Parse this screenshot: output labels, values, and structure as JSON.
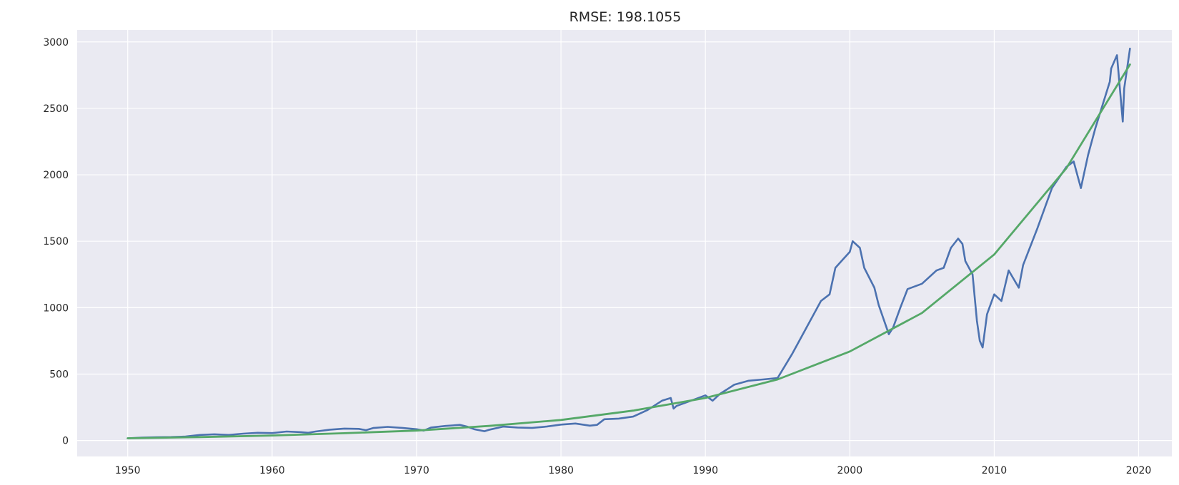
{
  "chart_data": {
    "type": "line",
    "title": "RMSE: 198.1055",
    "xlabel": "",
    "ylabel": "",
    "xlim": [
      1946.5,
      2022.3
    ],
    "ylim": [
      -120,
      3090
    ],
    "x_ticks": [
      "1950",
      "1960",
      "1970",
      "1980",
      "1990",
      "2000",
      "2010",
      "2020"
    ],
    "y_ticks": [
      "0",
      "500",
      "1000",
      "1500",
      "2000",
      "2500",
      "3000"
    ],
    "grid": true,
    "legend": "none",
    "series": [
      {
        "color": "#4c72b0",
        "x": [
          1950.0,
          1951.0,
          1952.0,
          1953.0,
          1954.0,
          1955.0,
          1956.0,
          1957.0,
          1958.0,
          1959.0,
          1960.0,
          1961.0,
          1962.0,
          1962.5,
          1963.0,
          1964.0,
          1965.0,
          1966.0,
          1966.5,
          1967.0,
          1968.0,
          1969.0,
          1970.0,
          1970.5,
          1971.0,
          1972.0,
          1973.0,
          1973.5,
          1974.0,
          1974.7,
          1975.0,
          1976.0,
          1977.0,
          1978.0,
          1979.0,
          1980.0,
          1981.0,
          1982.0,
          1982.5,
          1983.0,
          1984.0,
          1985.0,
          1986.0,
          1987.0,
          1987.6,
          1987.8,
          1988.0,
          1989.0,
          1990.0,
          1990.5,
          1991.0,
          1992.0,
          1993.0,
          1994.0,
          1995.0,
          1996.0,
          1997.0,
          1998.0,
          1998.6,
          1999.0,
          1999.5,
          2000.0,
          2000.2,
          2000.7,
          2001.0,
          2001.7,
          2002.0,
          2002.7,
          2003.0,
          2003.5,
          2004.0,
          2005.0,
          2006.0,
          2006.5,
          2007.0,
          2007.5,
          2007.8,
          2008.0,
          2008.5,
          2008.8,
          2009.0,
          2009.2,
          2009.5,
          2010.0,
          2010.5,
          2011.0,
          2011.7,
          2012.0,
          2013.0,
          2014.0,
          2015.0,
          2015.5,
          2016.0,
          2016.5,
          2017.0,
          2018.0,
          2018.1,
          2018.5,
          2018.9,
          2019.0,
          2019.4
        ],
        "y": [
          17,
          22,
          25,
          26,
          30,
          42,
          47,
          42,
          52,
          58,
          56,
          68,
          63,
          58,
          68,
          82,
          90,
          88,
          78,
          94,
          103,
          95,
          85,
          75,
          98,
          110,
          118,
          105,
          85,
          70,
          80,
          105,
          98,
          95,
          105,
          120,
          128,
          112,
          118,
          160,
          165,
          180,
          230,
          300,
          320,
          240,
          260,
          300,
          340,
          300,
          350,
          420,
          450,
          460,
          470,
          650,
          850,
          1050,
          1100,
          1300,
          1360,
          1420,
          1500,
          1450,
          1300,
          1150,
          1020,
          800,
          850,
          1000,
          1140,
          1180,
          1280,
          1300,
          1450,
          1520,
          1480,
          1350,
          1250,
          900,
          750,
          700,
          950,
          1100,
          1050,
          1280,
          1150,
          1320,
          1600,
          1900,
          2060,
          2100,
          1900,
          2150,
          2350,
          2700,
          2800,
          2900,
          2400,
          2650,
          2950
        ]
      },
      {
        "color": "#55a868",
        "x": [
          1950.0,
          1955.0,
          1960.0,
          1965.0,
          1970.0,
          1975.0,
          1980.0,
          1985.0,
          1990.0,
          1995.0,
          2000.0,
          2005.0,
          2010.0,
          2015.0,
          2019.4
        ],
        "y": [
          17,
          26,
          38,
          55,
          75,
          110,
          155,
          225,
          320,
          460,
          670,
          960,
          1400,
          2050,
          2830
        ]
      }
    ]
  }
}
